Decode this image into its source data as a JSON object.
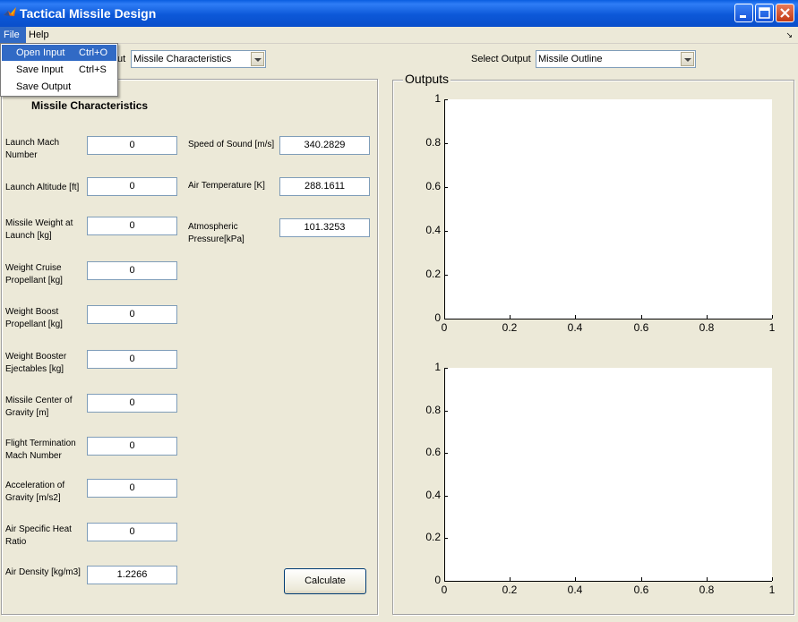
{
  "window": {
    "title": "Tactical Missile Design"
  },
  "menubar": {
    "file": "File",
    "help": "Help"
  },
  "file_menu": {
    "items": [
      {
        "label": "Open Input",
        "shortcut": "Ctrl+O"
      },
      {
        "label": "Save Input",
        "shortcut": "Ctrl+S"
      },
      {
        "label": "Save Output",
        "shortcut": ""
      }
    ]
  },
  "input_selector": {
    "label_fragment": "ut",
    "value": "Missile Characteristics"
  },
  "output_selector": {
    "label": "Select Output",
    "value": "Missile Outline"
  },
  "characteristics_panel": {
    "title": "Missile Characteristics",
    "fields": [
      {
        "label": "Launch Mach Number",
        "value": "0"
      },
      {
        "label": "Launch Altitude [ft]",
        "value": "0"
      },
      {
        "label": "Missile Weight at Launch [kg]",
        "value": "0"
      },
      {
        "label": "Weight Cruise Propellant [kg]",
        "value": "0"
      },
      {
        "label": "Weight Boost Propellant [kg]",
        "value": "0"
      },
      {
        "label": "Weight Booster Ejectables [kg]",
        "value": "0"
      },
      {
        "label": "Missile Center of Gravity [m]",
        "value": "0"
      },
      {
        "label": "Flight Termination Mach Number",
        "value": "0"
      },
      {
        "label": "Acceleration of Gravity [m/s2]",
        "value": "0"
      },
      {
        "label": "Air Specific Heat Ratio",
        "value": "0"
      },
      {
        "label": "Air Density [kg/m3]",
        "value": "1.2266"
      }
    ],
    "atmosphere": [
      {
        "label": "Speed of Sound [m/s]",
        "value": "340.2829"
      },
      {
        "label": "Air Temperature [K]",
        "value": "288.1611"
      },
      {
        "label": "Atmospheric Pressure[kPa]",
        "value": "101.3253"
      }
    ],
    "calculate_label": "Calculate"
  },
  "outputs_panel": {
    "title": "Outputs"
  },
  "plots": [
    {
      "x_ticks": [
        "0",
        "0.2",
        "0.4",
        "0.6",
        "0.8",
        "1"
      ],
      "y_ticks": [
        "0",
        "0.2",
        "0.4",
        "0.6",
        "0.8",
        "1"
      ]
    },
    {
      "x_ticks": [
        "0",
        "0.2",
        "0.4",
        "0.6",
        "0.8",
        "1"
      ],
      "y_ticks": [
        "0",
        "0.2",
        "0.4",
        "0.6",
        "0.8",
        "1"
      ]
    }
  ]
}
